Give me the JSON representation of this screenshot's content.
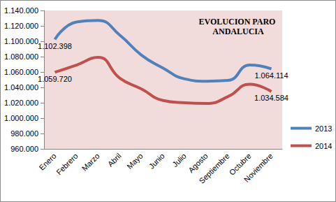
{
  "chart_data": {
    "type": "line",
    "title": "EVOLUCION PARO ANDALUCIA",
    "categories": [
      "Enero",
      "Febrero",
      "Marzo",
      "Abril",
      "Mayo",
      "Junio",
      "Julio",
      "Agosto",
      "Septiembre",
      "Octubre",
      "Noviembre"
    ],
    "series": [
      {
        "name": "2013",
        "color": "#4f81bd",
        "values": [
          1102398,
          1125000,
          1127000,
          1108000,
          1082000,
          1065000,
          1051000,
          1048000,
          1049000,
          1069000,
          1064114
        ],
        "value_labels": [
          "1.102.398",
          null,
          null,
          null,
          null,
          null,
          null,
          null,
          null,
          null,
          "1.064.114"
        ]
      },
      {
        "name": "2014",
        "color": "#c0504d",
        "values": [
          1059720,
          1069000,
          1079000,
          1052000,
          1038000,
          1023000,
          1020000,
          1019000,
          1028000,
          1044000,
          1034584
        ],
        "value_labels": [
          "1.059.720",
          null,
          null,
          null,
          null,
          null,
          null,
          null,
          null,
          null,
          "1.034.584"
        ]
      }
    ],
    "ylim": [
      960000,
      1140000
    ],
    "yticks": [
      {
        "value": 960000,
        "label": "960.000"
      },
      {
        "value": 980000,
        "label": "980.000"
      },
      {
        "value": 1000000,
        "label": "1.000.000"
      },
      {
        "value": 1020000,
        "label": "1.020.000"
      },
      {
        "value": 1040000,
        "label": "1.040.000"
      },
      {
        "value": 1060000,
        "label": "1.060.000"
      },
      {
        "value": 1080000,
        "label": "1.080.000"
      },
      {
        "value": 1100000,
        "label": "1.100.000"
      },
      {
        "value": 1120000,
        "label": "1.120.000"
      },
      {
        "value": 1140000,
        "label": "1.140.000"
      }
    ],
    "grid": false,
    "legend": "right",
    "data_labels": true,
    "line_style": "solid"
  }
}
